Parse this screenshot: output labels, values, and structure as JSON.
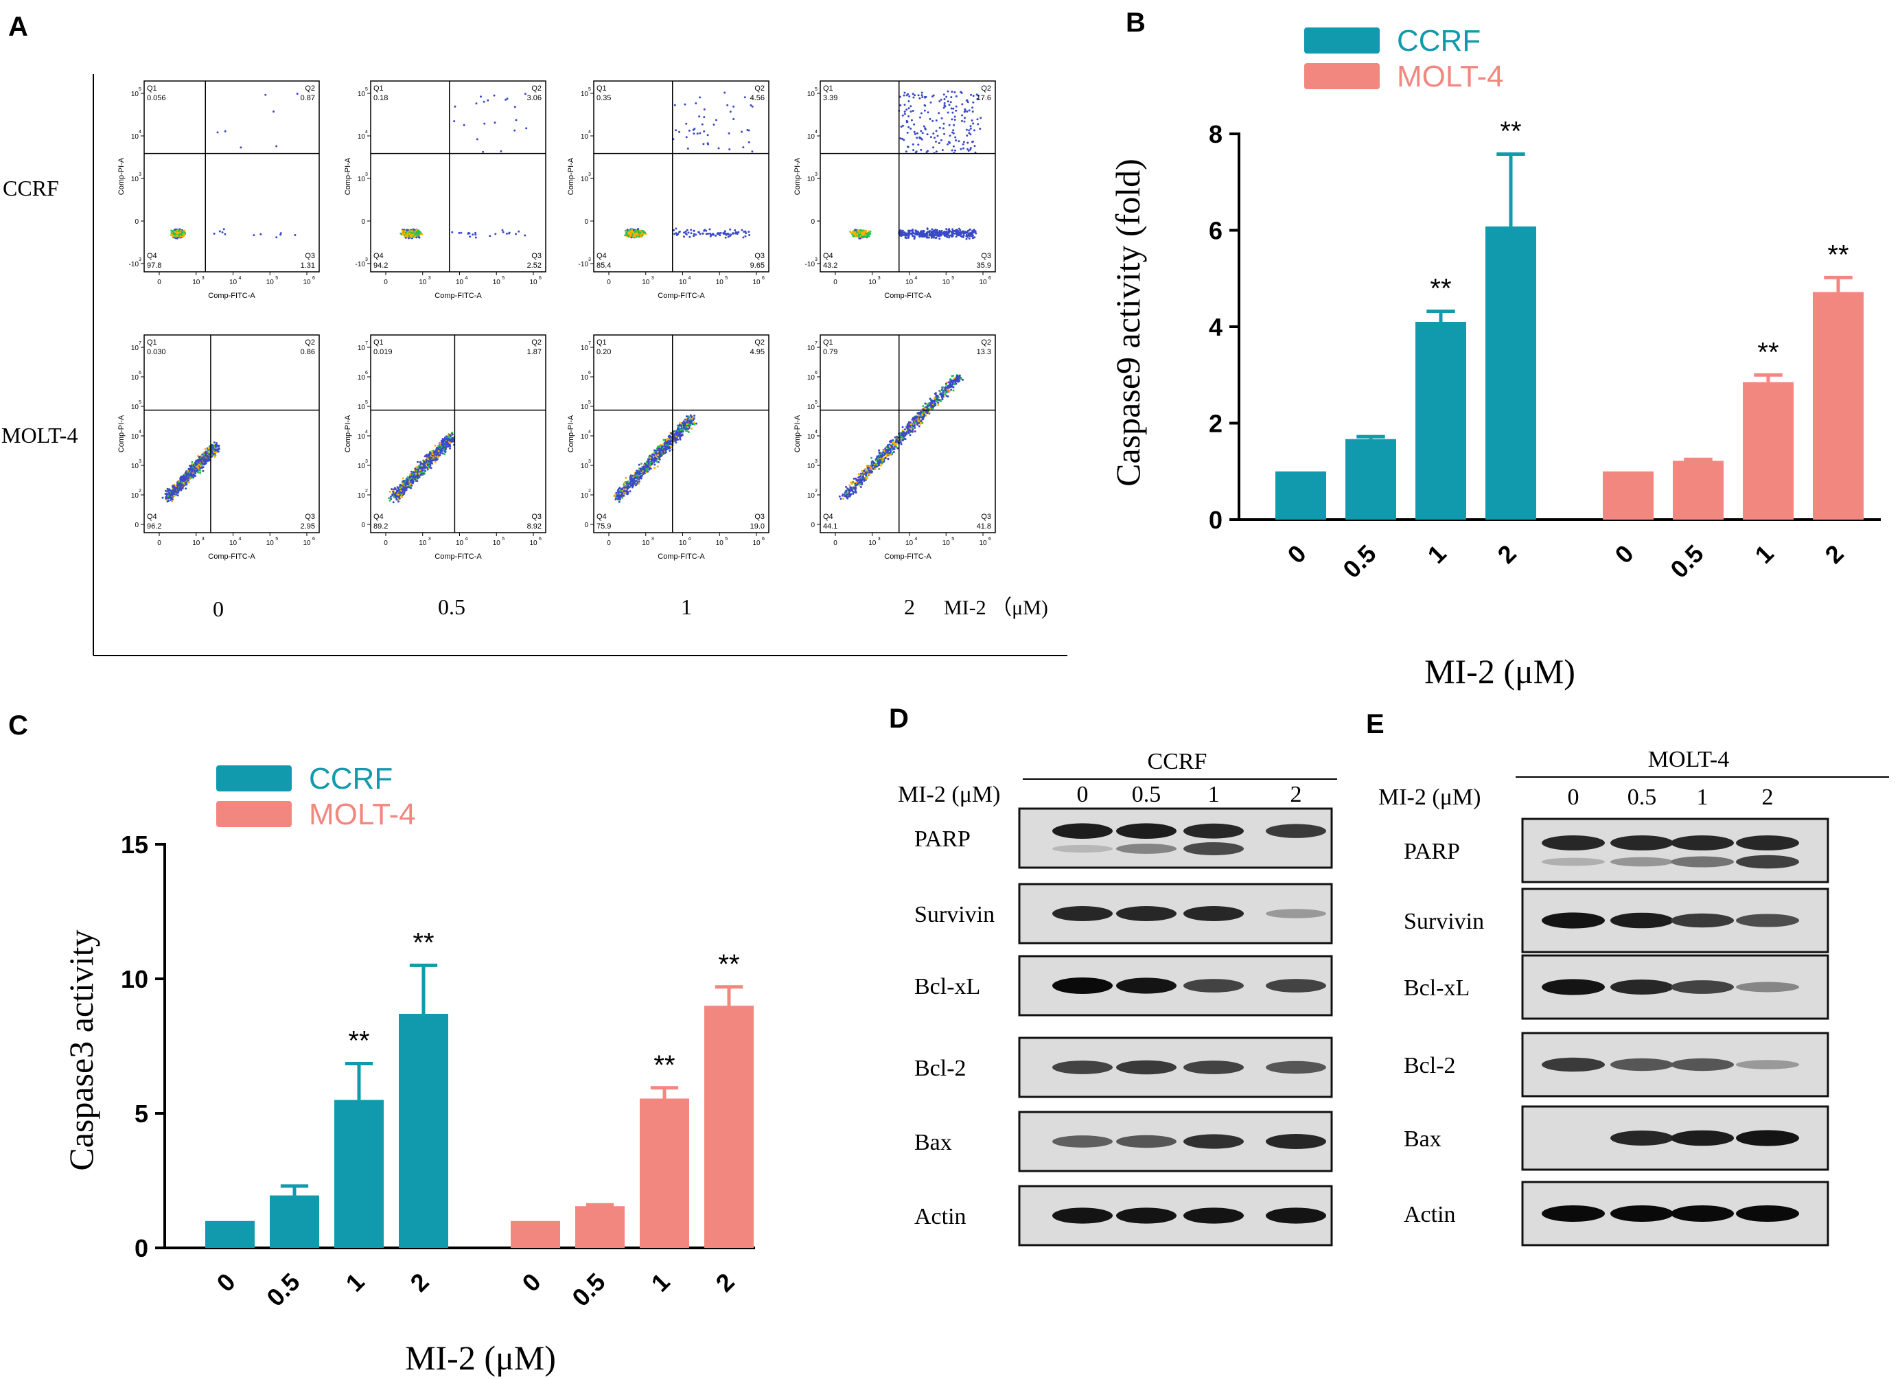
{
  "panel_labels": {
    "a": "A",
    "b": "B",
    "c": "C",
    "d": "D",
    "e": "E"
  },
  "panel_a": {
    "row_labels": [
      "CCRF",
      "MOLT-4"
    ],
    "x_axis_label": "Comp-FITC-A",
    "y_axis_label": "Comp-PI-A",
    "quadrant_names": [
      "Q1",
      "Q2",
      "Q3",
      "Q4"
    ],
    "column_doses": [
      "0",
      "0.5",
      "1",
      "2"
    ],
    "dose_suffix": "MI-2 （μM)",
    "x_ticks": [
      "0",
      "10",
      "10",
      "10",
      "10"
    ],
    "x_exps": [
      "",
      "3",
      "4",
      "5",
      "6"
    ],
    "ccrf_y_ticks": [
      "-10",
      "0",
      "10",
      "10",
      "10"
    ],
    "ccrf_y_exps": [
      "3",
      "",
      "3",
      "4",
      "5"
    ],
    "molt_y_ticks": [
      "0",
      "10",
      "10",
      "10",
      "10",
      "10",
      "10"
    ],
    "molt_y_exps": [
      "",
      "2",
      "3",
      "4",
      "5",
      "6",
      "7"
    ],
    "plots": [
      {
        "row": "CCRF",
        "q1": "0.056",
        "q2": "0.87",
        "q3": "1.31",
        "q4": "97.8"
      },
      {
        "row": "CCRF",
        "q1": "0.18",
        "q2": "3.06",
        "q3": "2.52",
        "q4": "94.2"
      },
      {
        "row": "CCRF",
        "q1": "0.35",
        "q2": "4.56",
        "q3": "9.65",
        "q4": "85.4"
      },
      {
        "row": "CCRF",
        "q1": "3.39",
        "q2": "17.6",
        "q3": "35.9",
        "q4": "43.2"
      },
      {
        "row": "MOLT-4",
        "q1": "0.030",
        "q2": "0.86",
        "q3": "2.95",
        "q4": "96.2"
      },
      {
        "row": "MOLT-4",
        "q1": "0.019",
        "q2": "1.87",
        "q3": "8.92",
        "q4": "89.2"
      },
      {
        "row": "MOLT-4",
        "q1": "0.20",
        "q2": "4.95",
        "q3": "19.0",
        "q4": "75.9"
      },
      {
        "row": "MOLT-4",
        "q1": "0.79",
        "q2": "13.3",
        "q3": "41.8",
        "q4": "44.1"
      }
    ]
  },
  "chart_data": [
    {
      "type": "bar",
      "panel": "B",
      "title": "",
      "ylabel": "Caspase9 activity (fold)",
      "xlabel": "MI-2 (μM)",
      "ylim": [
        0,
        8
      ],
      "yticks": [
        "0",
        "2",
        "4",
        "6",
        "8"
      ],
      "categories": [
        "0",
        "0.5",
        "1",
        "2"
      ],
      "significance": "**",
      "series": [
        {
          "name": "CCRF",
          "color": "#119aad",
          "values": [
            1.0,
            1.67,
            4.1,
            6.08
          ],
          "errors": [
            0.0,
            0.05,
            0.22,
            1.5
          ],
          "marks": [
            "",
            "",
            "**",
            "**"
          ]
        },
        {
          "name": "MOLT-4",
          "color": "#f2877f",
          "values": [
            1.0,
            1.22,
            2.85,
            4.72
          ],
          "errors": [
            0.0,
            0.03,
            0.15,
            0.3
          ],
          "marks": [
            "",
            "",
            "**",
            "**"
          ]
        }
      ]
    },
    {
      "type": "bar",
      "panel": "C",
      "title": "",
      "ylabel": "Caspase3 activity",
      "xlabel": "MI-2 (μM)",
      "ylim": [
        0,
        15
      ],
      "yticks": [
        "0",
        "5",
        "10",
        "15"
      ],
      "categories": [
        "0",
        "0.5",
        "1",
        "2"
      ],
      "significance": "**",
      "series": [
        {
          "name": "CCRF",
          "color": "#119aad",
          "values": [
            1.0,
            1.95,
            5.5,
            8.7
          ],
          "errors": [
            0.0,
            0.35,
            1.35,
            1.8
          ],
          "marks": [
            "",
            "",
            "**",
            "**"
          ]
        },
        {
          "name": "MOLT-4",
          "color": "#f2877f",
          "values": [
            1.0,
            1.55,
            5.55,
            9.0
          ],
          "errors": [
            0.0,
            0.05,
            0.4,
            0.7
          ],
          "marks": [
            "",
            "",
            "**",
            "**"
          ]
        }
      ]
    }
  ],
  "blot_d": {
    "cell_line": "CCRF",
    "dose_label": "MI-2 (μM)",
    "doses": [
      "0",
      "0.5",
      "1",
      "2"
    ],
    "proteins": [
      "PARP",
      "Survivin",
      "Bcl-xL",
      "Bcl-2",
      "Bax",
      "Actin"
    ],
    "band_intensity": [
      [
        0.9,
        0.9,
        0.85,
        0.75
      ],
      [
        0.85,
        0.85,
        0.85,
        0.25
      ],
      [
        1.0,
        0.95,
        0.7,
        0.7
      ],
      [
        0.7,
        0.75,
        0.7,
        0.6
      ],
      [
        0.55,
        0.6,
        0.8,
        0.85
      ],
      [
        0.95,
        0.95,
        0.95,
        0.95
      ]
    ],
    "cleaved_parp": [
      0.1,
      0.4,
      0.75,
      0.0
    ]
  },
  "blot_e": {
    "cell_line": "MOLT-4",
    "dose_label": "MI-2 (μM)",
    "doses": [
      "0",
      "0.5",
      "1",
      "2"
    ],
    "proteins": [
      "PARP",
      "Survivin",
      "Bcl-xL",
      "Bcl-2",
      "Bax",
      "Actin"
    ],
    "band_intensity": [
      [
        0.85,
        0.85,
        0.85,
        0.85
      ],
      [
        0.95,
        0.9,
        0.75,
        0.65
      ],
      [
        0.95,
        0.85,
        0.7,
        0.35
      ],
      [
        0.75,
        0.6,
        0.6,
        0.25
      ],
      [
        0.0,
        0.85,
        0.9,
        0.95
      ],
      [
        1.0,
        1.0,
        1.0,
        1.0
      ]
    ],
    "cleaved_parp": [
      0.15,
      0.3,
      0.5,
      0.8
    ]
  }
}
